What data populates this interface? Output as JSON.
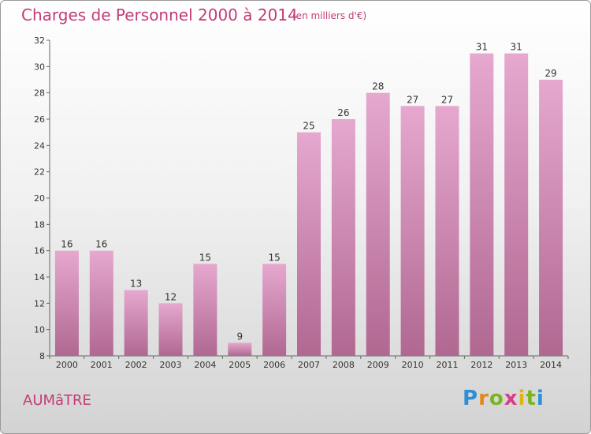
{
  "header": {
    "title": "Charges de Personnel 2000 à 2014",
    "subtitle": "(en milliers d'€)"
  },
  "footer": {
    "commune": "AUMâTRE",
    "logo_letters": [
      {
        "ch": "P",
        "color": "#2f8fd4"
      },
      {
        "ch": "r",
        "color": "#e08a1e"
      },
      {
        "ch": "o",
        "color": "#7ab51d"
      },
      {
        "ch": "x",
        "color": "#d83c8a"
      },
      {
        "ch": "i",
        "color": "#e0b21a"
      },
      {
        "ch": "t",
        "color": "#7ab51d"
      },
      {
        "ch": "i",
        "color": "#2f8fd4"
      }
    ]
  },
  "chart_data": {
    "type": "bar",
    "title": "Charges de Personnel 2000 à 2014",
    "subtitle": "(en milliers d'€)",
    "categories": [
      "2000",
      "2001",
      "2002",
      "2003",
      "2004",
      "2005",
      "2006",
      "2007",
      "2008",
      "2009",
      "2010",
      "2011",
      "2012",
      "2013",
      "2014"
    ],
    "values": [
      16,
      16,
      13,
      12,
      15,
      9,
      15,
      25,
      26,
      28,
      27,
      27,
      31,
      31,
      29
    ],
    "ylim": [
      8,
      32
    ],
    "yticks": [
      8,
      10,
      12,
      14,
      16,
      18,
      20,
      22,
      24,
      26,
      28,
      30,
      32
    ],
    "grid": false,
    "bar_color_top": "#e6a8cf",
    "bar_color_bottom": "#b06891"
  }
}
